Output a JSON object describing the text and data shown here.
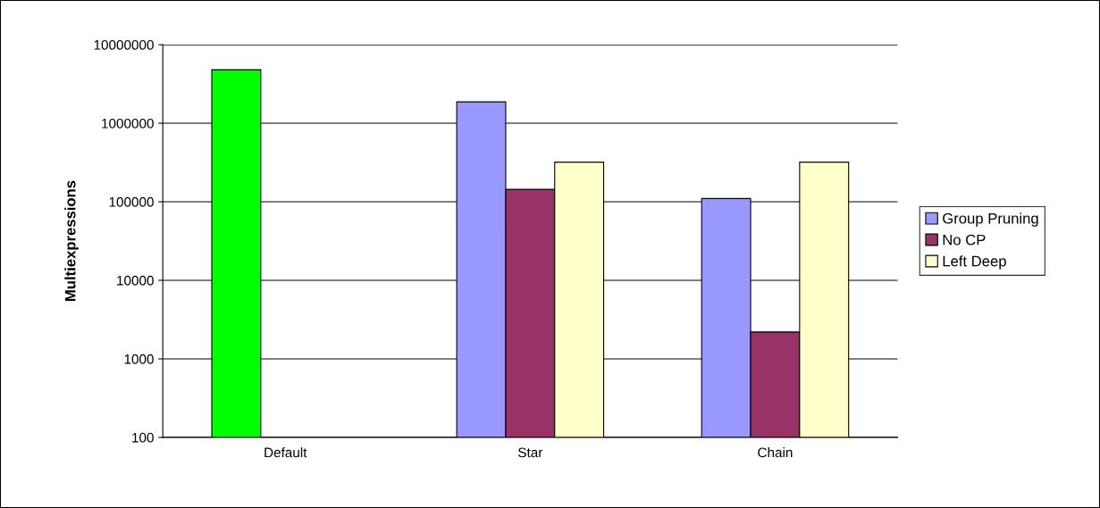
{
  "chart_data": {
    "type": "bar",
    "ylabel": "Multiexpressions",
    "categories": [
      "Default",
      "Star",
      "Chain"
    ],
    "series": [
      {
        "name": "Group Pruning",
        "color": "#9999ff",
        "colors": [
          "#00ff00",
          "#9999ff",
          "#9999ff"
        ],
        "values": [
          4800000,
          1870000,
          110000
        ]
      },
      {
        "name": "No CP",
        "color": "#993366",
        "values": [
          null,
          144000,
          2200
        ]
      },
      {
        "name": "Left Deep",
        "color": "#ffffcc",
        "values": [
          null,
          320000,
          320000
        ]
      }
    ],
    "log": "y",
    "ylim": [
      100,
      10000000
    ],
    "yticks": [
      100,
      1000,
      10000,
      100000,
      1000000,
      10000000
    ],
    "grid": "y",
    "legend": "right"
  }
}
